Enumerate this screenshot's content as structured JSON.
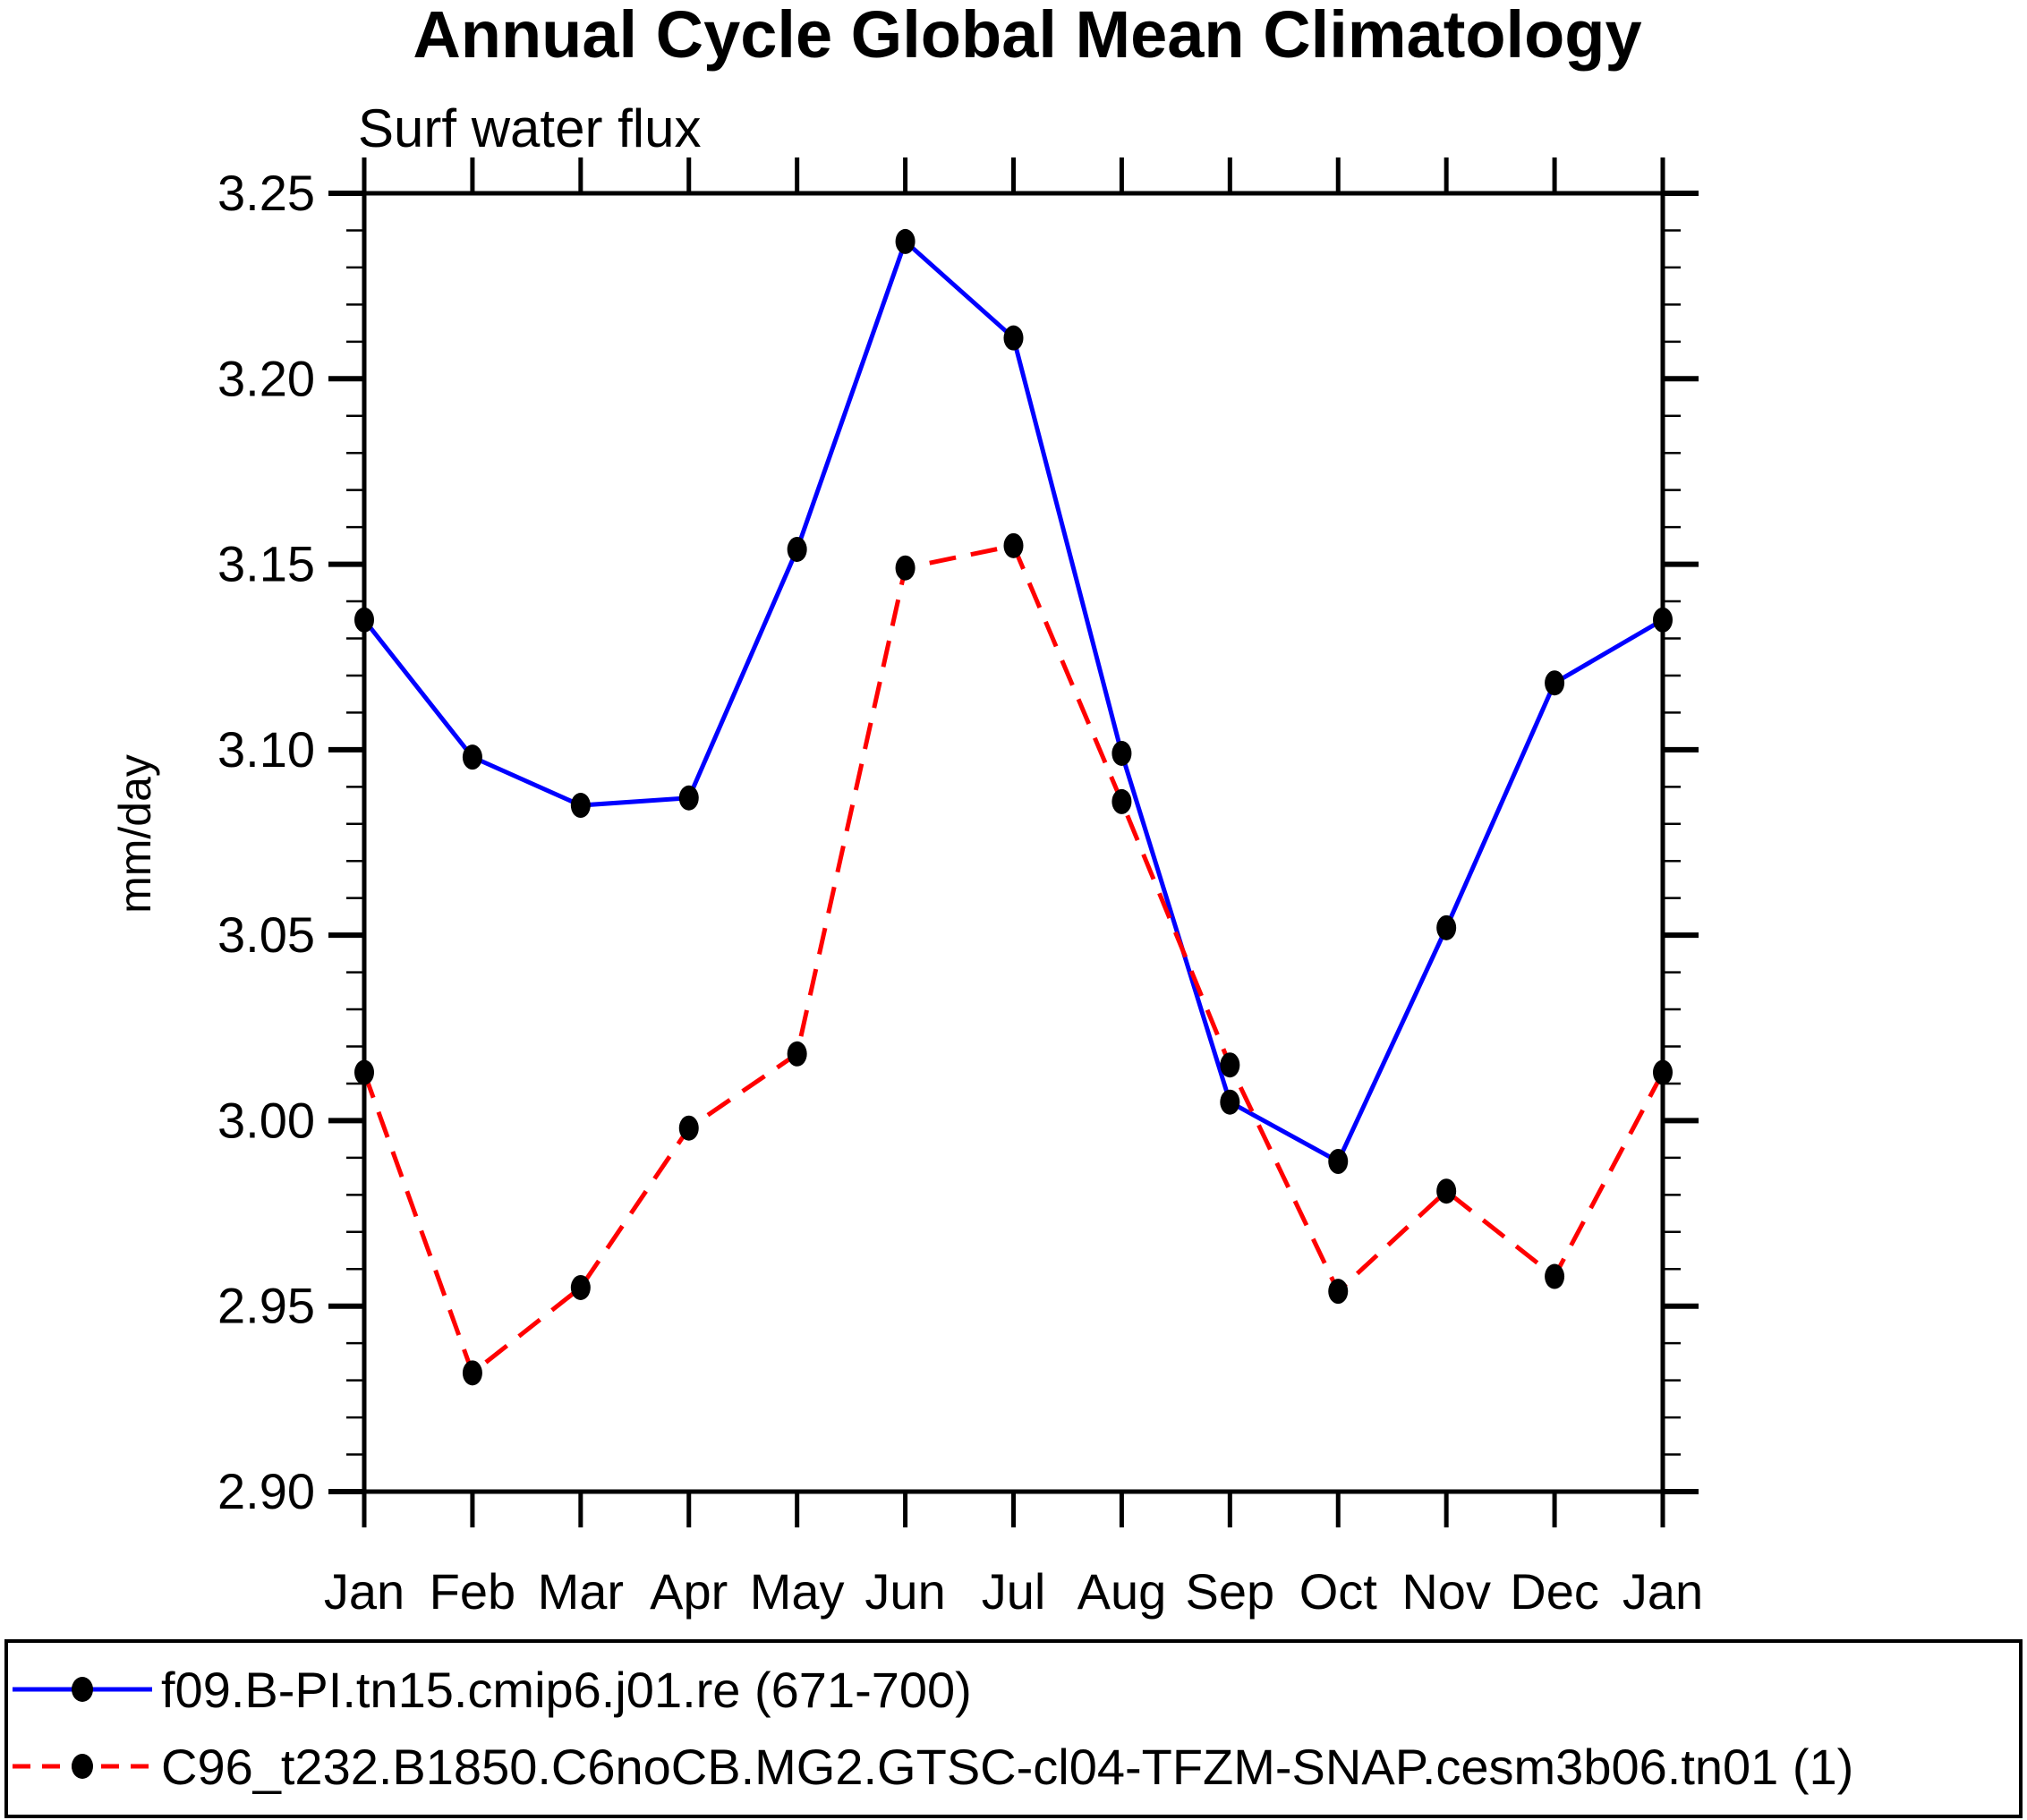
{
  "chart": {
    "title": "Annual Cycle Global Mean Climatology",
    "subtitle": "Surf water flux",
    "ylabel": "mm/day"
  },
  "legend": {
    "position": "bottom",
    "entries": [
      {
        "label": "f09.B-PI.tn15.cmip6.j01.re (671-700)",
        "color": "#0000ff",
        "line_style": "solid",
        "marker": "filled-circle",
        "marker_color": "#000000"
      },
      {
        "label": "C96_t232.B1850.C6noCB.MG2.GTSC-cl04-TFZM-SNAP.cesm3b06.tn01 (1)",
        "color": "#ff0000",
        "line_style": "dashed",
        "marker": "filled-circle",
        "marker_color": "#000000"
      }
    ]
  },
  "chart_data": {
    "type": "line",
    "title": "Annual Cycle Global Mean Climatology",
    "subtitle": "Surf water flux",
    "xlabel": "",
    "ylabel": "mm/day",
    "categories": [
      "Jan",
      "Feb",
      "Mar",
      "Apr",
      "May",
      "Jun",
      "Jul",
      "Aug",
      "Sep",
      "Oct",
      "Nov",
      "Dec",
      "Jan"
    ],
    "series": [
      {
        "name": "f09.B-PI.tn15.cmip6.j01.re (671-700)",
        "color": "#0000ff",
        "line_style": "solid",
        "marker": "filled-circle",
        "marker_color": "#000000",
        "values": [
          3.135,
          3.098,
          3.085,
          3.087,
          3.154,
          3.237,
          3.211,
          3.099,
          3.005,
          2.989,
          3.052,
          3.118,
          3.135
        ]
      },
      {
        "name": "C96_t232.B1850.C6noCB.MG2.GTSC-cl04-TFZM-SNAP.cesm3b06.tn01 (1)",
        "color": "#ff0000",
        "line_style": "dashed",
        "marker": "filled-circle",
        "marker_color": "#000000",
        "values": [
          3.013,
          2.932,
          2.955,
          2.998,
          3.018,
          3.149,
          3.155,
          3.086,
          3.015,
          2.954,
          2.981,
          2.958,
          3.013
        ]
      }
    ],
    "ylim": [
      2.9,
      3.25
    ],
    "ytick_interval": 0.05,
    "yminor_interval": 0.01,
    "ytick_format": "0.00",
    "grid": false,
    "tick_direction": "out",
    "legend_position": "bottom",
    "axis_color": "#000000"
  }
}
